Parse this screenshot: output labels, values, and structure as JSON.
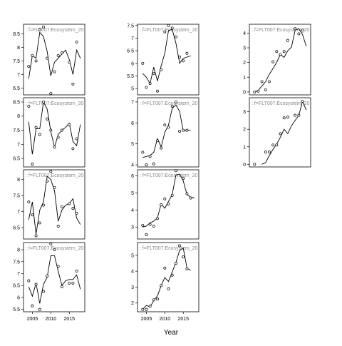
{
  "figure": {
    "xlabel": "Year"
  },
  "chart_data": [
    {
      "type": "scatter",
      "title": ": f=FLT007:Ecosystem_20",
      "ylim": [
        6.25,
        8.85
      ],
      "yticks": [
        6.5,
        7.0,
        7.5,
        8.0,
        8.5
      ],
      "show_xticks": false,
      "points": [
        [
          2004,
          7.3
        ],
        [
          2005,
          7.7
        ],
        [
          2006,
          7.5
        ],
        [
          2007,
          8.65
        ],
        [
          2008,
          8.75
        ],
        [
          2009,
          7.6
        ],
        [
          2010,
          6.3
        ],
        [
          2011,
          7.1
        ],
        [
          2012,
          7.7
        ],
        [
          2013,
          7.8
        ],
        [
          2015,
          7.45
        ],
        [
          2016,
          6.65
        ],
        [
          2017,
          8.2
        ]
      ],
      "fit": [
        [
          2004,
          6.85
        ],
        [
          2005,
          7.7
        ],
        [
          2006,
          7.6
        ],
        [
          2007,
          8.55
        ],
        [
          2008,
          8.4
        ],
        [
          2009,
          7.85
        ],
        [
          2010,
          6.95
        ],
        [
          2011,
          7.45
        ],
        [
          2012,
          7.6
        ],
        [
          2013,
          7.75
        ],
        [
          2014,
          7.9
        ],
        [
          2015,
          7.55
        ],
        [
          2016,
          7.0
        ],
        [
          2017,
          7.9
        ],
        [
          2018,
          7.6
        ]
      ]
    },
    {
      "type": "scatter",
      "title": ": f=FLT007:Ecosystem_20",
      "ylim": [
        4.75,
        7.55
      ],
      "yticks": [
        5.0,
        5.5,
        6.0,
        6.5,
        7.0,
        7.5
      ],
      "show_xticks": false,
      "points": [
        [
          2004,
          6.0
        ],
        [
          2005,
          5.05
        ],
        [
          2006,
          5.2
        ],
        [
          2007,
          5.6
        ],
        [
          2008,
          4.9
        ],
        [
          2009,
          5.75
        ],
        [
          2010,
          7.25
        ],
        [
          2011,
          7.5
        ],
        [
          2012,
          7.4
        ],
        [
          2013,
          7.05
        ],
        [
          2014,
          6.25
        ],
        [
          2015,
          6.1
        ],
        [
          2016,
          6.4
        ]
      ],
      "fit": [
        [
          2004,
          5.6
        ],
        [
          2005,
          5.45
        ],
        [
          2006,
          5.2
        ],
        [
          2007,
          5.85
        ],
        [
          2008,
          5.3
        ],
        [
          2009,
          5.9
        ],
        [
          2010,
          6.4
        ],
        [
          2011,
          7.3
        ],
        [
          2012,
          7.35
        ],
        [
          2013,
          6.8
        ],
        [
          2014,
          6.0
        ],
        [
          2015,
          6.2
        ],
        [
          2016,
          6.25
        ],
        [
          2017,
          6.3
        ]
      ]
    },
    {
      "type": "scatter",
      "title": ": f=FLT007:Ecosystem_20",
      "ylim": [
        -0.2,
        4.6
      ],
      "yticks": [
        0,
        1,
        2,
        3,
        4
      ],
      "show_xticks": false,
      "points": [
        [
          2004,
          0
        ],
        [
          2005,
          0.05
        ],
        [
          2006,
          0.7
        ],
        [
          2007,
          0.15
        ],
        [
          2008,
          0.7
        ],
        [
          2009,
          2.05
        ],
        [
          2010,
          2.75
        ],
        [
          2011,
          2.55
        ],
        [
          2012,
          2.75
        ],
        [
          2013,
          3.5
        ],
        [
          2015,
          4.3
        ],
        [
          2016,
          3.95
        ],
        [
          2017,
          4.2
        ]
      ],
      "fit": [
        [
          2004,
          0
        ],
        [
          2005,
          0.1
        ],
        [
          2006,
          0.4
        ],
        [
          2007,
          0.7
        ],
        [
          2008,
          1.2
        ],
        [
          2009,
          1.6
        ],
        [
          2010,
          2.0
        ],
        [
          2011,
          2.55
        ],
        [
          2012,
          2.35
        ],
        [
          2013,
          2.8
        ],
        [
          2014,
          3.05
        ],
        [
          2015,
          4.2
        ],
        [
          2016,
          4.3
        ],
        [
          2017,
          3.9
        ],
        [
          2018,
          3.1
        ]
      ]
    },
    {
      "type": "scatter",
      "title": ": f=FLT007:Ecosystem_20",
      "ylim": [
        6.2,
        8.65
      ],
      "yticks": [
        6.5,
        7.0,
        7.5,
        8.0,
        8.5
      ],
      "show_xticks": false,
      "points": [
        [
          2004,
          8.35
        ],
        [
          2005,
          6.3
        ],
        [
          2006,
          7.6
        ],
        [
          2007,
          7.35
        ],
        [
          2008,
          8.5
        ],
        [
          2009,
          7.9
        ],
        [
          2010,
          7.5
        ],
        [
          2011,
          6.9
        ],
        [
          2012,
          7.25
        ],
        [
          2013,
          7.5
        ],
        [
          2015,
          7.7
        ],
        [
          2016,
          6.85
        ],
        [
          2017,
          7.2
        ]
      ],
      "fit": [
        [
          2004,
          7.8
        ],
        [
          2005,
          6.65
        ],
        [
          2006,
          7.55
        ],
        [
          2007,
          7.55
        ],
        [
          2008,
          8.5
        ],
        [
          2009,
          8.25
        ],
        [
          2010,
          7.45
        ],
        [
          2011,
          6.9
        ],
        [
          2012,
          7.35
        ],
        [
          2013,
          7.5
        ],
        [
          2014,
          7.6
        ],
        [
          2015,
          7.75
        ],
        [
          2016,
          7.1
        ],
        [
          2017,
          6.95
        ],
        [
          2018,
          7.7
        ]
      ]
    },
    {
      "type": "scatter",
      "title": ": f=FLT007:Ecosystem_20",
      "ylim": [
        3.9,
        7.2
      ],
      "yticks": [
        4.0,
        5.0,
        6.0,
        7.0
      ],
      "show_xticks": false,
      "points": [
        [
          2004,
          4.6
        ],
        [
          2005,
          4.0
        ],
        [
          2006,
          4.4
        ],
        [
          2007,
          4.05
        ],
        [
          2008,
          5.15
        ],
        [
          2009,
          4.8
        ],
        [
          2010,
          5.9
        ],
        [
          2011,
          5.8
        ],
        [
          2012,
          6.8
        ],
        [
          2013,
          7.0
        ],
        [
          2014,
          5.6
        ],
        [
          2015,
          5.65
        ],
        [
          2016,
          5.65
        ]
      ],
      "fit": [
        [
          2004,
          4.35
        ],
        [
          2005,
          4.4
        ],
        [
          2006,
          4.45
        ],
        [
          2007,
          4.6
        ],
        [
          2008,
          5.25
        ],
        [
          2009,
          4.85
        ],
        [
          2010,
          5.55
        ],
        [
          2011,
          5.9
        ],
        [
          2012,
          6.7
        ],
        [
          2013,
          6.85
        ],
        [
          2014,
          6.55
        ],
        [
          2015,
          5.6
        ],
        [
          2016,
          5.65
        ],
        [
          2017,
          5.65
        ]
      ]
    },
    {
      "type": "scatter",
      "title": ": f=FLT007:Ecosystem_20",
      "ylim": [
        -0.15,
        3.8
      ],
      "yticks": [
        0,
        1,
        2,
        3
      ],
      "show_xticks": false,
      "points": [
        [
          2004,
          0
        ],
        [
          2007,
          0.7
        ],
        [
          2008,
          0.7
        ],
        [
          2009,
          1.1
        ],
        [
          2010,
          1.1
        ],
        [
          2011,
          1.75
        ],
        [
          2012,
          2.65
        ],
        [
          2013,
          2.7
        ],
        [
          2015,
          2.8
        ],
        [
          2016,
          2.8
        ],
        [
          2017,
          3.6
        ]
      ],
      "fit": [
        [
          2006,
          0
        ],
        [
          2007,
          0.1
        ],
        [
          2008,
          0.5
        ],
        [
          2009,
          0.85
        ],
        [
          2010,
          1.15
        ],
        [
          2011,
          1.55
        ],
        [
          2012,
          2.0
        ],
        [
          2013,
          1.75
        ],
        [
          2014,
          2.2
        ],
        [
          2015,
          2.5
        ],
        [
          2016,
          2.8
        ],
        [
          2017,
          3.6
        ],
        [
          2018,
          3.1
        ]
      ]
    },
    {
      "type": "scatter",
      "title": ": f=FLT007:Ecosystem_20",
      "ylim": [
        6.15,
        8.3
      ],
      "yticks": [
        6.5,
        7.0,
        7.5,
        8.0
      ],
      "show_xticks": false,
      "points": [
        [
          2004,
          7.3
        ],
        [
          2005,
          6.9
        ],
        [
          2006,
          6.25
        ],
        [
          2007,
          6.65
        ],
        [
          2008,
          7.2
        ],
        [
          2009,
          7.95
        ],
        [
          2010,
          8.25
        ],
        [
          2011,
          7.75
        ],
        [
          2012,
          6.55
        ],
        [
          2013,
          7.15
        ],
        [
          2015,
          7.25
        ],
        [
          2016,
          7.1
        ],
        [
          2017,
          6.95
        ]
      ],
      "fit": [
        [
          2004,
          6.75
        ],
        [
          2005,
          7.3
        ],
        [
          2006,
          6.3
        ],
        [
          2007,
          7.05
        ],
        [
          2008,
          7.3
        ],
        [
          2009,
          8.1
        ],
        [
          2010,
          8.0
        ],
        [
          2011,
          7.65
        ],
        [
          2012,
          6.7
        ],
        [
          2013,
          7.05
        ],
        [
          2014,
          7.2
        ],
        [
          2015,
          7.25
        ],
        [
          2016,
          7.4
        ],
        [
          2017,
          6.8
        ],
        [
          2018,
          6.6
        ]
      ]
    },
    {
      "type": "scatter",
      "title": ": f=FLT007:Ecosystem_20",
      "ylim": [
        2.3,
        6.35
      ],
      "yticks": [
        3,
        4,
        5,
        6
      ],
      "show_xticks": false,
      "points": [
        [
          2004,
          3.1
        ],
        [
          2005,
          2.55
        ],
        [
          2006,
          3.15
        ],
        [
          2007,
          3.05
        ],
        [
          2008,
          3.5
        ],
        [
          2009,
          4.3
        ],
        [
          2010,
          4.65
        ],
        [
          2011,
          4.35
        ],
        [
          2012,
          4.85
        ],
        [
          2013,
          6.3
        ],
        [
          2015,
          5.85
        ],
        [
          2016,
          4.95
        ],
        [
          2017,
          4.7
        ]
      ],
      "fit": [
        [
          2004,
          3.0
        ],
        [
          2005,
          3.05
        ],
        [
          2006,
          3.25
        ],
        [
          2007,
          3.35
        ],
        [
          2008,
          3.55
        ],
        [
          2009,
          4.35
        ],
        [
          2010,
          4.1
        ],
        [
          2011,
          4.5
        ],
        [
          2012,
          4.9
        ],
        [
          2013,
          6.05
        ],
        [
          2014,
          6.1
        ],
        [
          2015,
          5.7
        ],
        [
          2016,
          4.9
        ],
        [
          2017,
          4.75
        ],
        [
          2018,
          4.7
        ]
      ]
    },
    {
      "type": "scatter",
      "title": ": f=FLT007:Ecosystem_20",
      "ylim": [
        5.4,
        8.3
      ],
      "yticks": [
        5.5,
        6.0,
        6.5,
        7.0,
        7.5,
        8.0
      ],
      "show_xticks": true,
      "xticks": [
        2005,
        2010,
        2015
      ],
      "points": [
        [
          2004,
          6.7
        ],
        [
          2005,
          5.65
        ],
        [
          2006,
          6.55
        ],
        [
          2007,
          5.5
        ],
        [
          2008,
          6.25
        ],
        [
          2009,
          6.9
        ],
        [
          2010,
          8.25
        ],
        [
          2011,
          8.0
        ],
        [
          2012,
          7.3
        ],
        [
          2013,
          6.45
        ],
        [
          2015,
          6.6
        ],
        [
          2016,
          6.6
        ],
        [
          2017,
          7.1
        ]
      ],
      "fit": [
        [
          2004,
          6.45
        ],
        [
          2005,
          6.05
        ],
        [
          2006,
          6.6
        ],
        [
          2007,
          5.75
        ],
        [
          2008,
          6.55
        ],
        [
          2009,
          6.85
        ],
        [
          2010,
          7.75
        ],
        [
          2011,
          7.75
        ],
        [
          2012,
          7.1
        ],
        [
          2013,
          6.5
        ],
        [
          2014,
          6.7
        ],
        [
          2015,
          6.75
        ],
        [
          2016,
          6.75
        ],
        [
          2017,
          6.95
        ],
        [
          2018,
          6.35
        ]
      ]
    },
    {
      "type": "scatter",
      "title": ": f=FLT007:Ecosystem_20",
      "ylim": [
        1.45,
        5.8
      ],
      "yticks": [
        2,
        3,
        4,
        5
      ],
      "show_xticks": true,
      "xticks": [
        2005,
        2010,
        2015
      ],
      "points": [
        [
          2004,
          1.6
        ],
        [
          2005,
          1.6
        ],
        [
          2006,
          1.8
        ],
        [
          2007,
          2.2
        ],
        [
          2008,
          2.25
        ],
        [
          2009,
          3.1
        ],
        [
          2010,
          4.2
        ],
        [
          2011,
          2.9
        ],
        [
          2012,
          3.75
        ],
        [
          2013,
          4.5
        ],
        [
          2014,
          5.6
        ],
        [
          2015,
          4.9
        ],
        [
          2016,
          4.15
        ]
      ],
      "fit": [
        [
          2004,
          1.6
        ],
        [
          2005,
          1.85
        ],
        [
          2006,
          1.75
        ],
        [
          2007,
          2.15
        ],
        [
          2008,
          2.45
        ],
        [
          2009,
          3.1
        ],
        [
          2010,
          3.6
        ],
        [
          2011,
          3.35
        ],
        [
          2012,
          3.95
        ],
        [
          2013,
          4.55
        ],
        [
          2014,
          5.3
        ],
        [
          2015,
          5.45
        ],
        [
          2016,
          4.2
        ],
        [
          2017,
          4.05
        ]
      ]
    }
  ]
}
